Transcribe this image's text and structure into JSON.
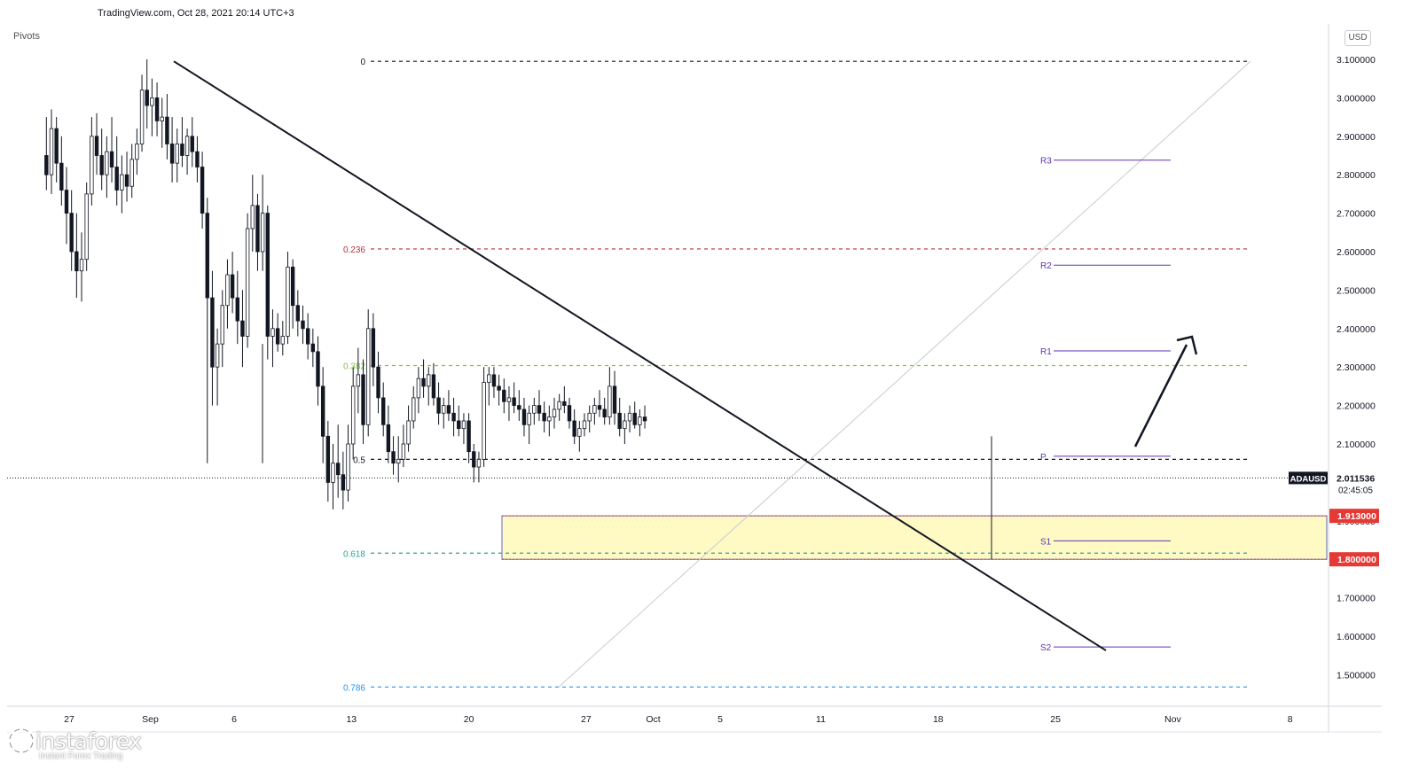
{
  "header": {
    "source": "TradingView.com, Oct 28, 2021 20:14 UTC+3",
    "indicator": "Pivots",
    "currency": "USD"
  },
  "branding": {
    "name": "instaforex",
    "tagline": "Instant Forex Trading",
    "logo_icon": "instaforex-gear-icon"
  },
  "chart_data": {
    "type": "candlestick",
    "symbol": "ADAUSD",
    "last_price": "2.011536",
    "countdown": "02:45:05",
    "y_range": [
      1.445,
      3.13
    ],
    "x_range_days": [
      0,
      68
    ],
    "x_ticks": [
      {
        "label": "27",
        "day": 0
      },
      {
        "label": "Sep",
        "day": 5
      },
      {
        "label": "6",
        "day": 10
      },
      {
        "label": "13",
        "day": 17
      },
      {
        "label": "20",
        "day": 24
      },
      {
        "label": "27",
        "day": 31
      },
      {
        "label": "Oct",
        "day": 35
      },
      {
        "label": "5",
        "day": 39
      },
      {
        "label": "11",
        "day": 45
      },
      {
        "label": "18",
        "day": 52
      },
      {
        "label": "25",
        "day": 59
      },
      {
        "label": "Nov",
        "day": 66
      },
      {
        "label": "8",
        "day": 73
      }
    ],
    "y_ticks": [
      "3.100000",
      "3.000000",
      "2.900000",
      "2.800000",
      "2.700000",
      "2.600000",
      "2.500000",
      "2.400000",
      "2.300000",
      "2.200000",
      "2.100000",
      "2.000000",
      "1.900000",
      "1.800000",
      "1.700000",
      "1.600000",
      "1.500000"
    ],
    "fib_levels": [
      {
        "label": "0",
        "price": 3.095,
        "color": "#131722"
      },
      {
        "label": "0.236",
        "price": 2.607,
        "color": "#b2333b"
      },
      {
        "label": "0.382",
        "price": 2.304,
        "color": "#8bc34a"
      },
      {
        "label": "0.5",
        "price": 2.06,
        "color": "#131722"
      },
      {
        "label": "0.618",
        "price": 1.816,
        "color": "#26a69a"
      },
      {
        "label": "0.786",
        "price": 1.468,
        "color": "#2196f3"
      }
    ],
    "pivot_levels": [
      {
        "label": "R3",
        "price": 2.838
      },
      {
        "label": "R2",
        "price": 2.565
      },
      {
        "label": "R1",
        "price": 2.342
      },
      {
        "label": "P",
        "price": 2.068
      },
      {
        "label": "S1",
        "price": 1.848
      },
      {
        "label": "S2",
        "price": 1.572
      }
    ],
    "support_zone": {
      "top": 1.913,
      "bottom": 1.8,
      "top_label": "1.913000",
      "bottom_label": "1.800000"
    },
    "candles": [
      [
        -1.2,
        2.85,
        2.95,
        2.76,
        2.8
      ],
      [
        -0.9,
        2.8,
        2.97,
        2.75,
        2.92
      ],
      [
        -0.6,
        2.92,
        2.95,
        2.78,
        2.83
      ],
      [
        -0.3,
        2.83,
        2.9,
        2.72,
        2.76
      ],
      [
        0.0,
        2.76,
        2.82,
        2.62,
        2.7
      ],
      [
        0.3,
        2.7,
        2.76,
        2.55,
        2.6
      ],
      [
        0.6,
        2.6,
        2.7,
        2.48,
        2.55
      ],
      [
        0.9,
        2.55,
        2.65,
        2.47,
        2.58
      ],
      [
        1.2,
        2.58,
        2.78,
        2.55,
        2.75
      ],
      [
        1.5,
        2.75,
        2.95,
        2.72,
        2.9
      ],
      [
        1.8,
        2.9,
        2.96,
        2.8,
        2.85
      ],
      [
        2.1,
        2.85,
        2.92,
        2.76,
        2.8
      ],
      [
        2.4,
        2.8,
        2.9,
        2.74,
        2.86
      ],
      [
        2.7,
        2.86,
        2.95,
        2.78,
        2.82
      ],
      [
        3.0,
        2.82,
        2.9,
        2.72,
        2.76
      ],
      [
        3.3,
        2.76,
        2.85,
        2.7,
        2.8
      ],
      [
        3.6,
        2.8,
        2.86,
        2.73,
        2.77
      ],
      [
        3.9,
        2.77,
        2.88,
        2.74,
        2.84
      ],
      [
        4.2,
        2.84,
        2.92,
        2.8,
        2.88
      ],
      [
        4.5,
        2.88,
        3.06,
        2.86,
        3.02
      ],
      [
        4.8,
        3.02,
        3.1,
        2.92,
        2.98
      ],
      [
        5.1,
        2.98,
        3.05,
        2.9,
        3.0
      ],
      [
        5.4,
        3.0,
        3.04,
        2.9,
        2.94
      ],
      [
        5.7,
        2.94,
        3.0,
        2.87,
        2.95
      ],
      [
        6.0,
        2.95,
        3.01,
        2.84,
        2.88
      ],
      [
        6.3,
        2.88,
        2.95,
        2.78,
        2.83
      ],
      [
        6.6,
        2.83,
        2.92,
        2.78,
        2.88
      ],
      [
        6.9,
        2.88,
        2.95,
        2.82,
        2.85
      ],
      [
        7.2,
        2.85,
        2.92,
        2.8,
        2.9
      ],
      [
        7.5,
        2.9,
        2.95,
        2.82,
        2.86
      ],
      [
        7.8,
        2.86,
        2.9,
        2.78,
        2.82
      ],
      [
        8.1,
        2.82,
        2.86,
        2.66,
        2.7
      ],
      [
        8.4,
        2.7,
        2.74,
        2.05,
        2.48
      ],
      [
        8.7,
        2.48,
        2.55,
        2.2,
        2.3
      ],
      [
        9.0,
        2.3,
        2.4,
        2.2,
        2.36
      ],
      [
        9.3,
        2.36,
        2.5,
        2.3,
        2.46
      ],
      [
        9.6,
        2.46,
        2.58,
        2.4,
        2.54
      ],
      [
        9.9,
        2.54,
        2.6,
        2.44,
        2.48
      ],
      [
        10.2,
        2.48,
        2.55,
        2.36,
        2.42
      ],
      [
        10.5,
        2.42,
        2.5,
        2.3,
        2.38
      ],
      [
        10.8,
        2.38,
        2.7,
        2.35,
        2.66
      ],
      [
        11.1,
        2.66,
        2.8,
        2.6,
        2.72
      ],
      [
        11.4,
        2.72,
        2.75,
        2.55,
        2.6
      ],
      [
        11.7,
        2.6,
        2.8,
        2.55,
        2.7
      ],
      [
        12.0,
        2.7,
        2.72,
        2.32,
        2.38
      ],
      [
        12.3,
        2.38,
        2.45,
        2.3,
        2.4
      ],
      [
        12.6,
        2.4,
        2.44,
        2.34,
        2.36
      ],
      [
        12.9,
        2.36,
        2.42,
        2.33,
        2.38
      ],
      [
        13.2,
        2.38,
        2.6,
        2.36,
        2.56
      ],
      [
        13.5,
        2.56,
        2.58,
        2.4,
        2.46
      ],
      [
        13.8,
        2.46,
        2.5,
        2.38,
        2.42
      ],
      [
        14.1,
        2.42,
        2.46,
        2.36,
        2.4
      ],
      [
        14.4,
        2.4,
        2.44,
        2.32,
        2.36
      ],
      [
        14.7,
        2.36,
        2.4,
        2.3,
        2.34
      ],
      [
        15.0,
        2.34,
        2.38,
        2.2,
        2.25
      ],
      [
        15.3,
        2.25,
        2.3,
        2.05,
        2.12
      ],
      [
        15.6,
        2.12,
        2.16,
        1.95,
        2.0
      ],
      [
        15.9,
        2.0,
        2.1,
        1.93,
        2.05
      ],
      [
        16.2,
        2.05,
        2.15,
        1.96,
        2.02
      ],
      [
        16.5,
        2.02,
        2.08,
        1.93,
        1.98
      ],
      [
        16.8,
        1.98,
        2.15,
        1.95,
        2.1
      ],
      [
        17.1,
        2.1,
        2.3,
        2.06,
        2.25
      ],
      [
        17.4,
        2.25,
        2.35,
        2.18,
        2.28
      ],
      [
        17.7,
        2.28,
        2.32,
        2.1,
        2.15
      ],
      [
        18.0,
        2.15,
        2.45,
        2.12,
        2.4
      ],
      [
        18.3,
        2.4,
        2.44,
        2.25,
        2.3
      ],
      [
        18.6,
        2.3,
        2.34,
        2.18,
        2.22
      ],
      [
        18.9,
        2.22,
        2.26,
        2.12,
        2.15
      ],
      [
        19.2,
        2.15,
        2.2,
        2.05,
        2.08
      ],
      [
        19.5,
        2.08,
        2.12,
        2.02,
        2.05
      ],
      [
        19.8,
        2.05,
        2.12,
        2.0,
        2.06
      ],
      [
        20.1,
        2.06,
        2.15,
        2.04,
        2.1
      ],
      [
        20.4,
        2.1,
        2.2,
        2.08,
        2.16
      ],
      [
        20.7,
        2.16,
        2.25,
        2.14,
        2.22
      ],
      [
        21.0,
        2.22,
        2.3,
        2.18,
        2.27
      ],
      [
        21.3,
        2.27,
        2.32,
        2.22,
        2.25
      ],
      [
        21.6,
        2.25,
        2.3,
        2.2,
        2.28
      ],
      [
        21.9,
        2.28,
        2.31,
        2.2,
        2.22
      ],
      [
        22.2,
        2.22,
        2.26,
        2.15,
        2.18
      ],
      [
        22.5,
        2.18,
        2.22,
        2.14,
        2.2
      ],
      [
        22.8,
        2.2,
        2.24,
        2.16,
        2.18
      ],
      [
        23.1,
        2.18,
        2.22,
        2.12,
        2.16
      ],
      [
        23.4,
        2.16,
        2.2,
        2.12,
        2.14
      ],
      [
        23.7,
        2.14,
        2.18,
        2.1,
        2.16
      ],
      [
        24.0,
        2.16,
        2.18,
        2.05,
        2.08
      ],
      [
        24.3,
        2.08,
        2.1,
        2.0,
        2.04
      ],
      [
        24.6,
        2.04,
        2.08,
        2.0,
        2.06
      ],
      [
        24.9,
        2.06,
        2.3,
        2.04,
        2.26
      ],
      [
        25.2,
        2.26,
        2.3,
        2.2,
        2.28
      ],
      [
        25.5,
        2.28,
        2.3,
        2.22,
        2.25
      ],
      [
        25.8,
        2.25,
        2.28,
        2.2,
        2.24
      ],
      [
        26.1,
        2.24,
        2.27,
        2.18,
        2.21
      ],
      [
        26.4,
        2.21,
        2.25,
        2.16,
        2.22
      ],
      [
        26.7,
        2.22,
        2.26,
        2.18,
        2.2
      ],
      [
        27.0,
        2.2,
        2.24,
        2.16,
        2.19
      ],
      [
        27.3,
        2.19,
        2.22,
        2.12,
        2.15
      ],
      [
        27.6,
        2.15,
        2.2,
        2.1,
        2.18
      ],
      [
        27.9,
        2.18,
        2.22,
        2.15,
        2.2
      ],
      [
        28.2,
        2.2,
        2.24,
        2.16,
        2.18
      ],
      [
        28.5,
        2.18,
        2.21,
        2.13,
        2.16
      ],
      [
        28.8,
        2.16,
        2.2,
        2.12,
        2.17
      ],
      [
        29.1,
        2.17,
        2.22,
        2.14,
        2.19
      ],
      [
        29.4,
        2.19,
        2.23,
        2.16,
        2.21
      ],
      [
        29.7,
        2.21,
        2.25,
        2.18,
        2.2
      ],
      [
        30.0,
        2.2,
        2.22,
        2.14,
        2.16
      ],
      [
        30.3,
        2.16,
        2.19,
        2.1,
        2.12
      ],
      [
        30.6,
        2.12,
        2.16,
        2.08,
        2.14
      ],
      [
        30.9,
        2.14,
        2.18,
        2.12,
        2.16
      ],
      [
        31.2,
        2.16,
        2.2,
        2.13,
        2.18
      ],
      [
        31.5,
        2.18,
        2.22,
        2.15,
        2.2
      ],
      [
        31.8,
        2.2,
        2.24,
        2.17,
        2.19
      ],
      [
        32.1,
        2.19,
        2.22,
        2.15,
        2.17
      ],
      [
        32.4,
        2.17,
        2.3,
        2.15,
        2.25
      ],
      [
        32.7,
        2.25,
        2.29,
        2.15,
        2.18
      ],
      [
        33.0,
        2.18,
        2.22,
        2.12,
        2.14
      ],
      [
        33.3,
        2.14,
        2.18,
        2.1,
        2.16
      ],
      [
        33.6,
        2.16,
        2.2,
        2.13,
        2.18
      ],
      [
        33.9,
        2.18,
        2.21,
        2.14,
        2.15
      ],
      [
        34.2,
        2.15,
        2.19,
        2.12,
        2.17
      ],
      [
        34.5,
        2.17,
        2.2,
        2.14,
        2.16
      ]
    ]
  }
}
